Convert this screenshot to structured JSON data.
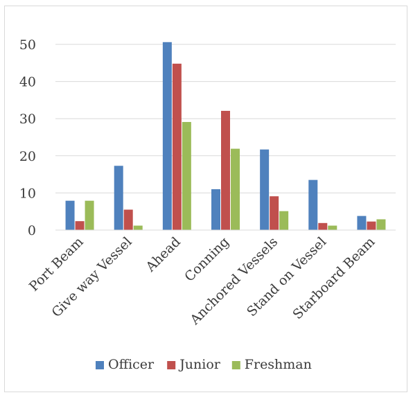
{
  "chart_data": {
    "type": "bar",
    "title": "",
    "xlabel": "",
    "ylabel": "",
    "categories": [
      "Port Beam",
      "Give way Vessel",
      "Ahead",
      "Conning",
      "Anchored Vessels",
      "Stand on Vessel",
      "Starboard Beam"
    ],
    "series": [
      {
        "name": "Officer",
        "color": "#4F81BD",
        "values": [
          7.9,
          17.3,
          50.6,
          11.0,
          21.7,
          13.5,
          3.8
        ]
      },
      {
        "name": "Junior",
        "color": "#C0504D",
        "values": [
          2.4,
          5.5,
          44.8,
          32.1,
          9.1,
          1.9,
          2.3
        ]
      },
      {
        "name": "Freshman",
        "color": "#9BBB59",
        "values": [
          7.9,
          1.2,
          29.1,
          21.9,
          5.1,
          1.2,
          2.9
        ]
      }
    ],
    "ylim": [
      0,
      50
    ],
    "yticks": [
      0,
      10,
      20,
      30,
      40,
      50
    ],
    "grid": true,
    "legend_position": "bottom"
  }
}
